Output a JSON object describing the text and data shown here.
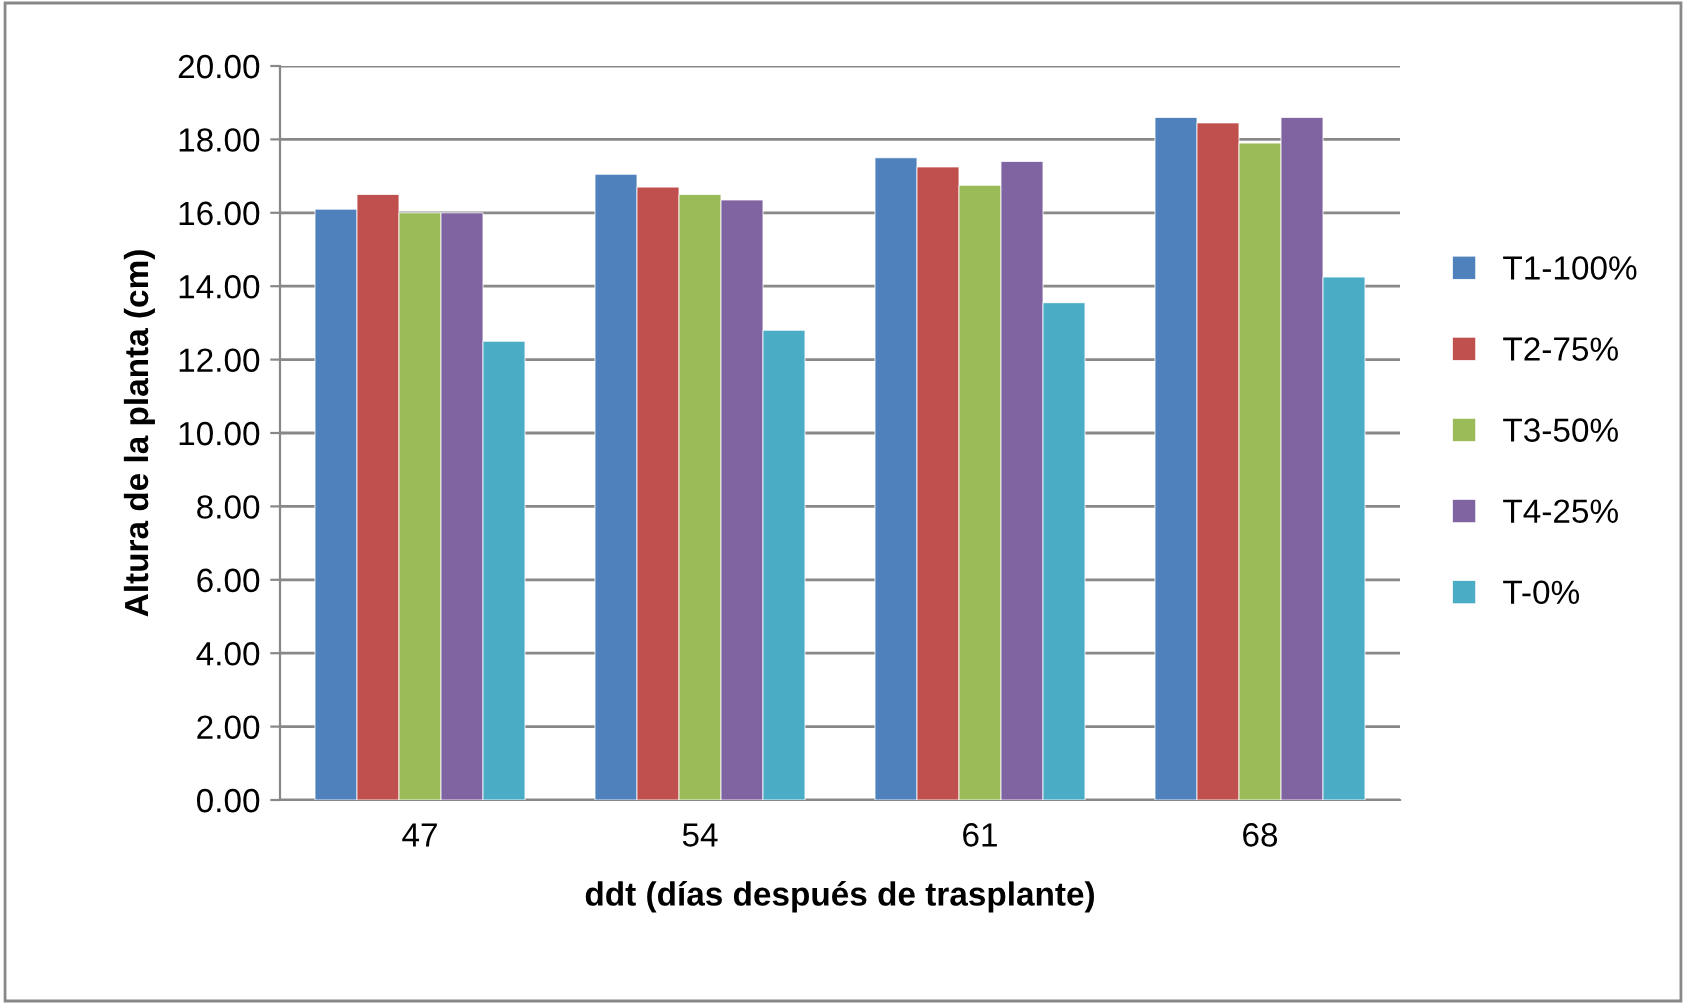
{
  "chart_data": {
    "type": "bar",
    "xlabel": "ddt (días después de trasplante)",
    "ylabel": "Altura de la planta (cm)",
    "categories": [
      "47",
      "54",
      "61",
      "68"
    ],
    "series": [
      {
        "name": "T1-100%",
        "color": "#4f81bd",
        "values": [
          16.1,
          17.05,
          17.5,
          18.6
        ]
      },
      {
        "name": "T2-75%",
        "color": "#c0504d",
        "values": [
          16.5,
          16.7,
          17.25,
          18.45
        ]
      },
      {
        "name": "T3-50%",
        "color": "#9bbb59",
        "values": [
          16.0,
          16.5,
          16.75,
          17.9
        ]
      },
      {
        "name": "T4-25%",
        "color": "#8064a2",
        "values": [
          16.0,
          16.35,
          17.4,
          18.6
        ]
      },
      {
        "name": "T-0%",
        "color": "#4bacc6",
        "values": [
          12.5,
          12.8,
          13.55,
          14.25
        ]
      }
    ],
    "ylim": [
      0,
      20
    ],
    "yticks": [
      {
        "value": 0,
        "label": "0.00"
      },
      {
        "value": 2,
        "label": "2.00"
      },
      {
        "value": 4,
        "label": "4.00"
      },
      {
        "value": 6,
        "label": "6.00"
      },
      {
        "value": 8,
        "label": "8.00"
      },
      {
        "value": 10,
        "label": "10.00"
      },
      {
        "value": 12,
        "label": "12.00"
      },
      {
        "value": 14,
        "label": "14.00"
      },
      {
        "value": 16,
        "label": "16.00"
      },
      {
        "value": 18,
        "label": "18.00"
      },
      {
        "value": 20,
        "label": "20.00"
      }
    ],
    "grid": "y",
    "legend": "right"
  }
}
